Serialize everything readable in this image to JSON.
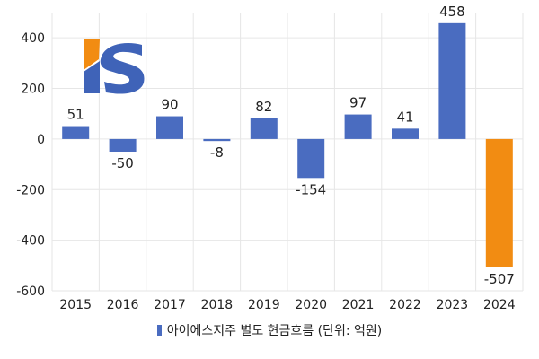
{
  "colors": {
    "positive": "#4A6CC0",
    "highlight": "#F28C12",
    "grid": "#E6E6E6",
    "logo_blue": "#3F63B8",
    "logo_orange": "#F28C12"
  },
  "logo": {
    "text": "IS"
  },
  "chart_data": {
    "type": "bar",
    "categories": [
      "2015",
      "2016",
      "2017",
      "2018",
      "2019",
      "2020",
      "2021",
      "2022",
      "2023",
      "2024"
    ],
    "values": [
      51,
      -50,
      90,
      -8,
      82,
      -154,
      97,
      41,
      458,
      -507
    ],
    "data_labels": [
      "51",
      "-50",
      "90",
      "-8",
      "82",
      "-154",
      "97",
      "41",
      "458",
      "-507"
    ],
    "highlight_index": 9,
    "ylim": [
      -600,
      500
    ],
    "yticks": [
      400,
      200,
      0,
      -200,
      -400,
      -600
    ],
    "ytick_labels": [
      "400",
      "200",
      "0",
      "-200",
      "-400",
      "-600"
    ],
    "legend": "아이에스지주 별도 현금흐름 (단위: 억원)",
    "legend_position": "bottom",
    "grid": true
  }
}
